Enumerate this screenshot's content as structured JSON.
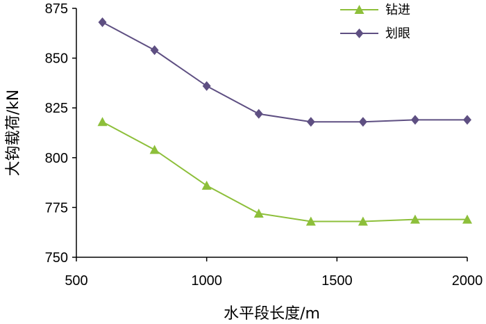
{
  "chart_data": {
    "type": "line",
    "xlabel": "水平段长度/m",
    "ylabel": "大钩载荷/kN",
    "xlim": [
      500,
      2000
    ],
    "ylim": [
      750,
      875
    ],
    "xticks": [
      500,
      1000,
      1500,
      2000
    ],
    "yticks": [
      750,
      775,
      800,
      825,
      850,
      875
    ],
    "grid": false,
    "legend_position": "top-right",
    "x": [
      600,
      800,
      1000,
      1200,
      1400,
      1600,
      1800,
      2000
    ],
    "series": [
      {
        "name": "钻进",
        "marker": "triangle",
        "color": "#8dbf3a",
        "values": [
          818,
          804,
          786,
          772,
          768,
          768,
          769,
          769
        ]
      },
      {
        "name": "划眼",
        "marker": "diamond",
        "color": "#5e4f82",
        "values": [
          868,
          854,
          836,
          822,
          818,
          818,
          819,
          819
        ]
      }
    ]
  }
}
